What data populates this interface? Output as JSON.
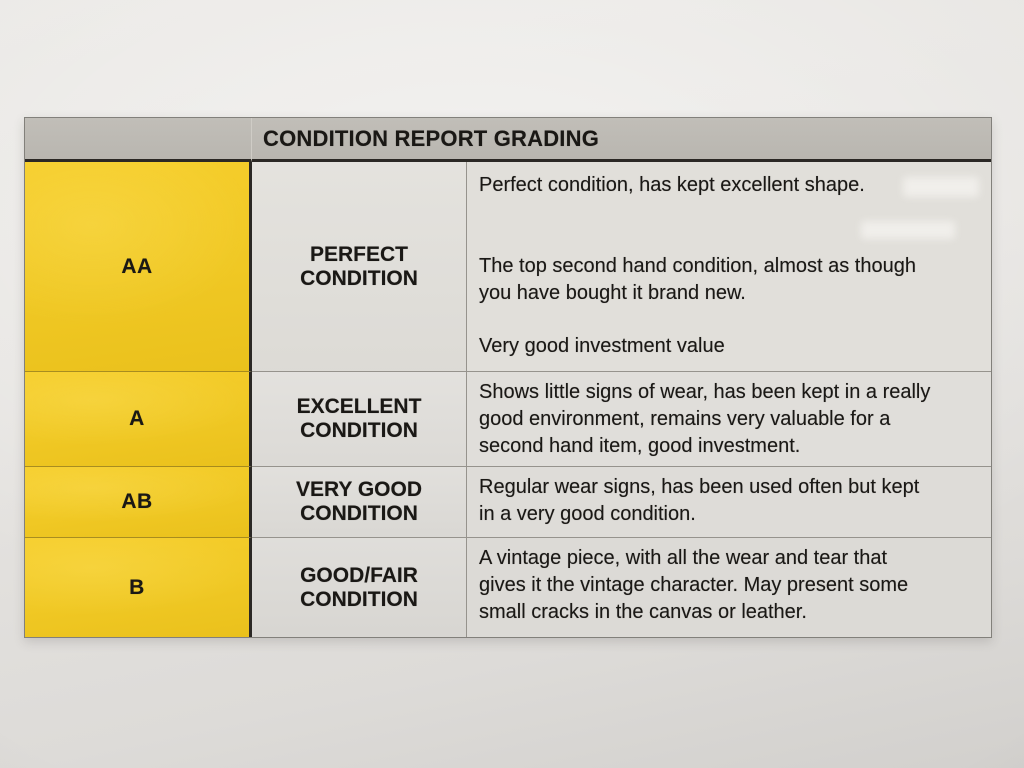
{
  "table": {
    "title": "CONDITION REPORT GRADING",
    "rows": [
      {
        "grade": "AA",
        "name_lines": [
          "PERFECT",
          "CONDITION"
        ],
        "paragraphs": [
          "Perfect condition, has kept excellent shape.",
          "The top second hand condition, almost as though you have bought it brand new.",
          "Very good investment value"
        ]
      },
      {
        "grade": "A",
        "name_lines": [
          "EXCELLENT",
          "CONDITION"
        ],
        "paragraphs": [
          "Shows little signs of wear, has been kept in a really good environment, remains very valuable for a second hand item, good investment."
        ]
      },
      {
        "grade": "AB",
        "name_lines": [
          "VERY GOOD",
          "CONDITION"
        ],
        "paragraphs": [
          "Regular wear signs, has been used often but kept in a very good condition."
        ]
      },
      {
        "grade": "B",
        "name_lines": [
          "GOOD/FAIR",
          "CONDITION"
        ],
        "paragraphs": [
          "A vintage piece, with all the wear and tear that gives it the vintage character. May present some small cracks in the canvas or leather."
        ]
      }
    ]
  },
  "colors": {
    "grade_column_yellow": "#f0c824",
    "header_gray": "#bdbab4",
    "cell_gray": "#e1dfda",
    "paper": "#e5e3e0",
    "ink": "#1a1815",
    "heavy_rule": "#2b2825"
  }
}
